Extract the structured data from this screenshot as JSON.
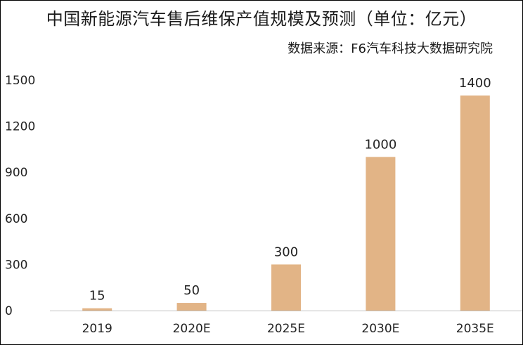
{
  "title": "中国新能源汽车售后维保产值规模及预测（单位：亿元）",
  "source": "数据来源：F6汽车科技大数据研究院",
  "colors": {
    "bar": "#E2B486",
    "axis": "#bfbfbf",
    "text": "#222222"
  },
  "chart_data": {
    "type": "bar",
    "title": "中国新能源汽车售后维保产值规模及预测（单位：亿元）",
    "xlabel": "",
    "ylabel": "",
    "categories": [
      "2019",
      "2020E",
      "2025E",
      "2030E",
      "2035E"
    ],
    "values": [
      15,
      50,
      300,
      1000,
      1400
    ],
    "data_labels": [
      "15",
      "50",
      "300",
      "1000",
      "1400"
    ],
    "ylim": [
      0,
      1500
    ],
    "yticks": [
      0,
      300,
      600,
      900,
      1200,
      1500
    ],
    "ytick_labels": [
      "0",
      "300",
      "600",
      "900",
      "1200",
      "1500"
    ],
    "grid": false,
    "legend": "none"
  }
}
